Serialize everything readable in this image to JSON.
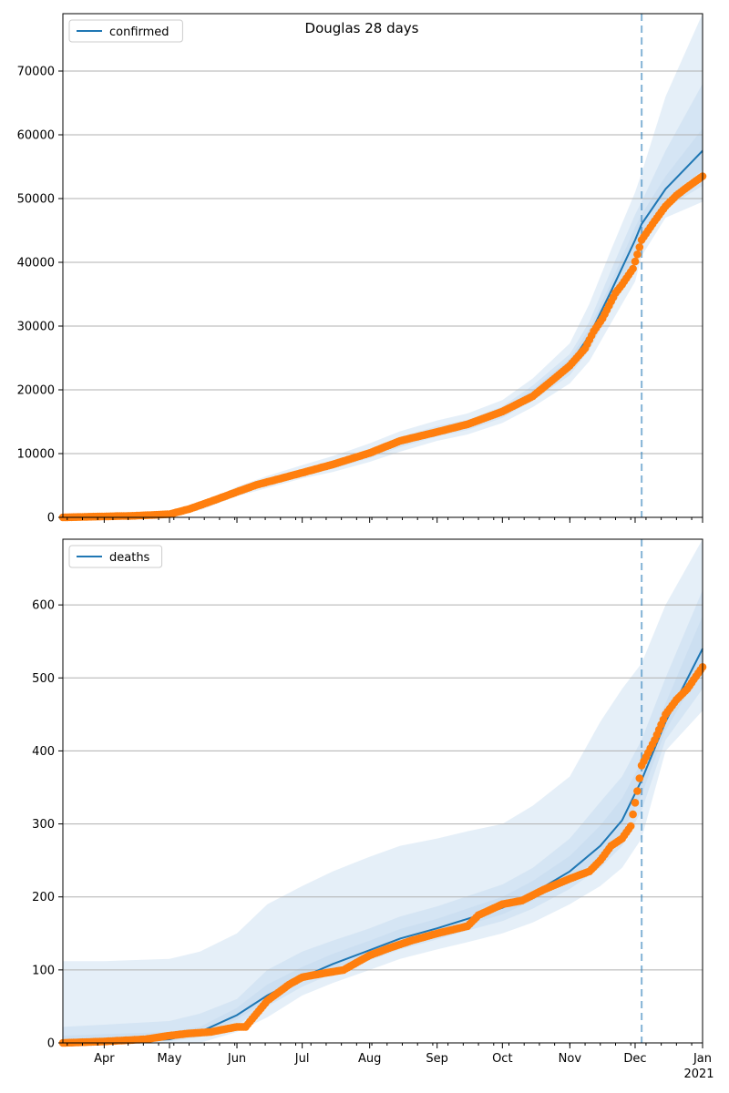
{
  "figure": {
    "title": "Douglas 28 days"
  },
  "colors": {
    "model": "#1f77b4",
    "observed": "#ff7f0e",
    "band": "#c6dbef",
    "grid": "#b0b0b0",
    "vline": "#1f77b4"
  },
  "x_axis": {
    "months": [
      {
        "label": "Apr",
        "day": 19
      },
      {
        "label": "May",
        "day": 49
      },
      {
        "label": "Jun",
        "day": 80
      },
      {
        "label": "Jul",
        "day": 110
      },
      {
        "label": "Aug",
        "day": 141
      },
      {
        "label": "Sep",
        "day": 172
      },
      {
        "label": "Oct",
        "day": 202
      },
      {
        "label": "Nov",
        "day": 233
      },
      {
        "label": "Dec",
        "day": 263
      },
      {
        "label": "Jan",
        "day": 294
      }
    ],
    "year_label": "2021",
    "range": [
      "2020-03-13",
      "2021-01-01"
    ]
  },
  "chart_data": [
    {
      "type": "line",
      "legend": "confirmed",
      "legend_position": "top-left",
      "grid": "horizontal",
      "ylim": [
        0,
        79000
      ],
      "yticks": [
        0,
        10000,
        20000,
        30000,
        40000,
        50000,
        60000,
        70000
      ],
      "forecast_start": "2020-12-04",
      "model_series": {
        "name": "confirmed",
        "x": [
          "2020-03-13",
          "2020-04-01",
          "2020-05-01",
          "2020-05-15",
          "2020-06-01",
          "2020-06-15",
          "2020-07-01",
          "2020-07-15",
          "2020-08-01",
          "2020-08-15",
          "2020-09-01",
          "2020-09-15",
          "2020-10-01",
          "2020-10-15",
          "2020-11-01",
          "2020-11-10",
          "2020-11-20",
          "2020-12-01",
          "2020-12-04",
          "2020-12-15",
          "2021-01-01"
        ],
        "y": [
          0,
          100,
          500,
          1500,
          4000,
          5500,
          7000,
          8200,
          10000,
          11800,
          13500,
          14500,
          16500,
          19500,
          24000,
          28500,
          35500,
          43500,
          46000,
          51500,
          57500
        ]
      },
      "bands": [
        {
          "label": "outer",
          "lower": [
            0,
            0,
            300,
            1100,
            3300,
            4600,
            6100,
            7100,
            8700,
            10300,
            12000,
            13000,
            14800,
            17300,
            21000,
            24500,
            30500,
            37000,
            41000,
            47000,
            49500
          ],
          "upper": [
            300,
            300,
            800,
            2000,
            4800,
            6500,
            8200,
            9600,
            11600,
            13500,
            15200,
            16300,
            18400,
            21800,
            27300,
            33500,
            42000,
            51000,
            54000,
            66000,
            79000
          ]
        },
        {
          "label": "middle",
          "lower": [
            0,
            50,
            400,
            1300,
            3600,
            5000,
            6500,
            7600,
            9300,
            11000,
            12700,
            13700,
            15600,
            18300,
            22300,
            26300,
            32500,
            39500,
            43000,
            48500,
            52000
          ],
          "upper": [
            150,
            150,
            650,
            1700,
            4400,
            6000,
            7600,
            8800,
            10700,
            12600,
            14300,
            15300,
            17400,
            20700,
            25600,
            30700,
            38800,
            47500,
            49500,
            57500,
            68000
          ]
        },
        {
          "label": "inner",
          "lower": [
            0,
            80,
            450,
            1400,
            3800,
            5200,
            6700,
            7900,
            9600,
            11400,
            13100,
            14100,
            16000,
            18900,
            23100,
            27400,
            34100,
            41500,
            44500,
            50000,
            54500
          ],
          "upper": [
            50,
            120,
            550,
            1600,
            4200,
            5800,
            7300,
            8500,
            10400,
            12200,
            13900,
            14900,
            17000,
            20100,
            24900,
            29600,
            36900,
            45500,
            47500,
            53500,
            61000
          ]
        }
      ],
      "observed": {
        "x": [
          "2020-03-13",
          "2020-04-01",
          "2020-04-15",
          "2020-05-01",
          "2020-05-10",
          "2020-05-20",
          "2020-06-01",
          "2020-06-10",
          "2020-06-20",
          "2020-07-01",
          "2020-07-15",
          "2020-08-01",
          "2020-08-15",
          "2020-09-01",
          "2020-09-15",
          "2020-10-01",
          "2020-10-15",
          "2020-10-25",
          "2020-11-01",
          "2020-11-08",
          "2020-11-12",
          "2020-11-16",
          "2020-11-22",
          "2020-11-25",
          "2020-11-30",
          "2020-12-04",
          "2020-12-10",
          "2020-12-15",
          "2020-12-20",
          "2020-12-25",
          "2021-01-01"
        ],
        "y": [
          0,
          150,
          250,
          500,
          1300,
          2500,
          4000,
          5100,
          6000,
          7000,
          8300,
          10100,
          12000,
          13400,
          14600,
          16600,
          19000,
          21800,
          23800,
          26500,
          29200,
          31200,
          35200,
          36500,
          39000,
          43500,
          46500,
          48800,
          50500,
          51800,
          53500
        ]
      }
    },
    {
      "type": "line",
      "legend": "deaths",
      "legend_position": "top-left",
      "grid": "horizontal",
      "ylim": [
        0,
        690
      ],
      "yticks": [
        0,
        100,
        200,
        300,
        400,
        500,
        600
      ],
      "forecast_start": "2020-12-04",
      "model_series": {
        "name": "deaths",
        "x": [
          "2020-03-13",
          "2020-04-01",
          "2020-05-01",
          "2020-05-15",
          "2020-06-01",
          "2020-06-15",
          "2020-07-01",
          "2020-07-15",
          "2020-08-01",
          "2020-08-15",
          "2020-09-01",
          "2020-09-15",
          "2020-10-01",
          "2020-10-15",
          "2020-11-01",
          "2020-11-15",
          "2020-11-25",
          "2020-12-04",
          "2020-12-15",
          "2021-01-01"
        ],
        "y": [
          0,
          0,
          5,
          15,
          38,
          65,
          90,
          108,
          127,
          143,
          157,
          170,
          185,
          205,
          235,
          270,
          305,
          360,
          440,
          540
        ]
      },
      "bands": [
        {
          "label": "outer",
          "lower": [
            0,
            0,
            0,
            0,
            15,
            35,
            65,
            82,
            100,
            115,
            128,
            138,
            150,
            165,
            190,
            215,
            240,
            280,
            400,
            455
          ],
          "upper": [
            112,
            112,
            115,
            125,
            150,
            190,
            215,
            235,
            255,
            270,
            280,
            290,
            300,
            325,
            365,
            440,
            485,
            520,
            600,
            690
          ]
        },
        {
          "label": "middle",
          "lower": [
            0,
            0,
            2,
            8,
            25,
            50,
            77,
            95,
            113,
            128,
            142,
            154,
            167,
            184,
            211,
            240,
            270,
            318,
            415,
            485
          ],
          "upper": [
            22,
            25,
            30,
            40,
            60,
            100,
            125,
            140,
            157,
            173,
            187,
            201,
            217,
            240,
            280,
            330,
            365,
            415,
            500,
            620
          ]
        },
        {
          "label": "inner",
          "lower": [
            0,
            0,
            3,
            11,
            32,
            58,
            84,
            102,
            120,
            136,
            150,
            162,
            176,
            195,
            223,
            255,
            288,
            340,
            428,
            515
          ],
          "upper": [
            10,
            12,
            15,
            22,
            48,
            80,
            104,
            122,
            140,
            156,
            170,
            184,
            200,
            222,
            256,
            298,
            335,
            385,
            465,
            585
          ]
        }
      ],
      "observed": {
        "x": [
          "2020-03-13",
          "2020-04-01",
          "2020-04-20",
          "2020-05-01",
          "2020-05-10",
          "2020-05-20",
          "2020-06-01",
          "2020-06-05",
          "2020-06-10",
          "2020-06-15",
          "2020-06-25",
          "2020-07-01",
          "2020-07-10",
          "2020-07-20",
          "2020-08-01",
          "2020-08-10",
          "2020-08-20",
          "2020-09-01",
          "2020-09-15",
          "2020-09-20",
          "2020-10-01",
          "2020-10-10",
          "2020-10-20",
          "2020-11-01",
          "2020-11-10",
          "2020-11-15",
          "2020-11-20",
          "2020-11-25",
          "2020-11-29",
          "2020-12-02",
          "2020-12-04",
          "2020-12-10",
          "2020-12-15",
          "2020-12-20",
          "2020-12-25",
          "2021-01-01"
        ],
        "y": [
          0,
          2,
          5,
          10,
          13,
          15,
          22,
          22,
          40,
          58,
          80,
          90,
          95,
          100,
          120,
          130,
          140,
          150,
          160,
          175,
          190,
          195,
          210,
          225,
          235,
          250,
          270,
          280,
          297,
          345,
          380,
          415,
          450,
          470,
          485,
          515
        ]
      }
    }
  ]
}
